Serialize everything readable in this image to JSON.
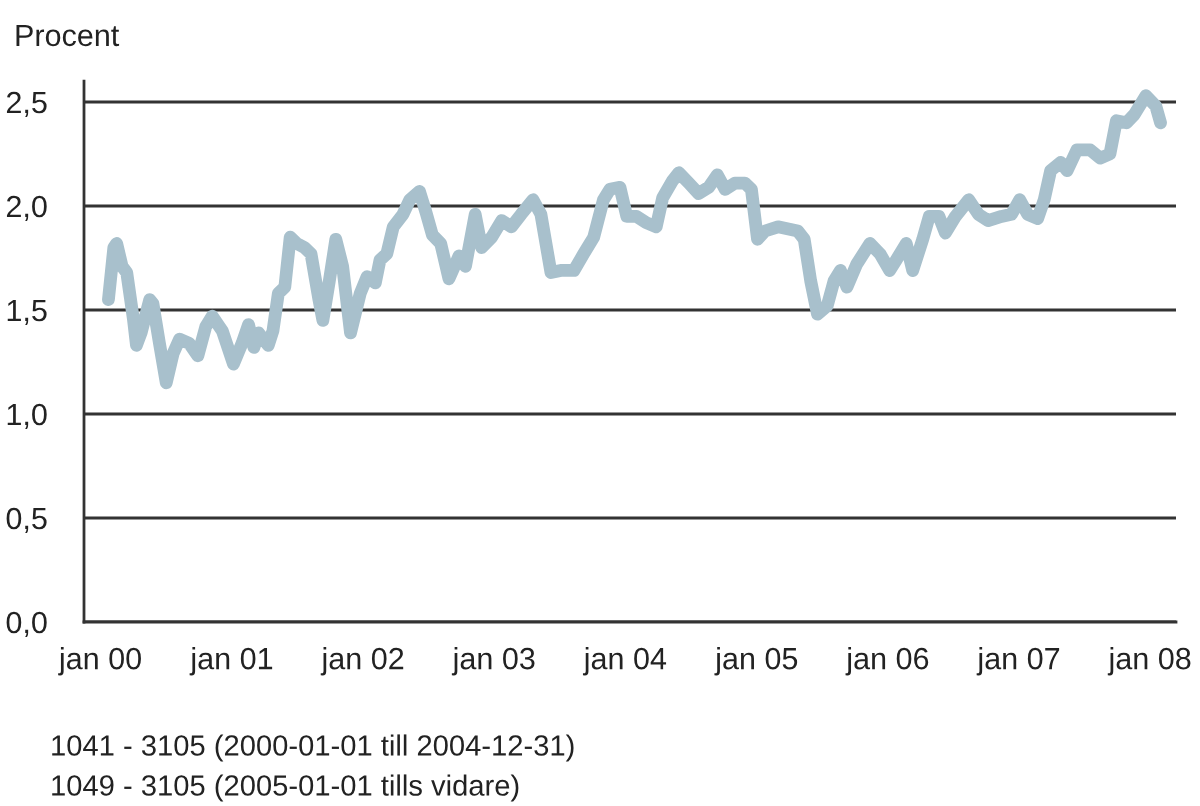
{
  "chart_data": {
    "type": "line",
    "ylabel": "Procent",
    "x": [
      "2000-01-23",
      "2000-02-07",
      "2000-02-15",
      "2000-03-01",
      "2000-03-14",
      "2000-04-02",
      "2000-04-10",
      "2000-04-23",
      "2000-05-17",
      "2000-05-26",
      "2000-06-13",
      "2000-07-02",
      "2000-07-21",
      "2000-08-08",
      "2000-09-04",
      "2000-09-28",
      "2000-10-20",
      "2000-11-07",
      "2000-12-05",
      "2001-01-05",
      "2001-01-29",
      "2001-02-16",
      "2001-03-03",
      "2001-03-16",
      "2001-04-12",
      "2001-04-25",
      "2001-05-10",
      "2001-05-28",
      "2001-06-12",
      "2001-06-30",
      "2001-07-22",
      "2001-08-09",
      "2001-08-31",
      "2001-09-11",
      "2001-09-29",
      "2001-10-17",
      "2001-11-05",
      "2001-11-27",
      "2001-12-24",
      "2002-01-12",
      "2002-02-04",
      "2002-02-17",
      "2002-03-08",
      "2002-03-26",
      "2002-04-22",
      "2002-05-11",
      "2002-06-07",
      "2002-06-25",
      "2002-07-13",
      "2002-08-05",
      "2002-08-28",
      "2002-09-25",
      "2002-10-13",
      "2002-11-09",
      "2002-11-27",
      "2002-12-25",
      "2003-01-22",
      "2003-02-18",
      "2003-03-17",
      "2003-04-19",
      "2003-05-11",
      "2003-06-08",
      "2003-07-05",
      "2003-08-11",
      "2003-09-07",
      "2003-10-05",
      "2003-11-01",
      "2003-11-19",
      "2003-12-17",
      "2004-01-05",
      "2004-02-01",
      "2004-02-28",
      "2004-03-27",
      "2004-04-14",
      "2004-05-11",
      "2004-05-29",
      "2004-06-26",
      "2004-07-23",
      "2004-08-20",
      "2004-09-13",
      "2004-10-05",
      "2004-11-01",
      "2004-11-29",
      "2004-12-17",
      "2005-01-03",
      "2005-01-24",
      "2005-03-01",
      "2005-04-25",
      "2005-05-13",
      "2005-05-31",
      "2005-06-19",
      "2005-07-16",
      "2005-08-04",
      "2005-08-22",
      "2005-09-09",
      "2005-10-06",
      "2005-11-12",
      "2005-12-10",
      "2006-01-06",
      "2006-01-24",
      "2006-02-21",
      "2006-03-11",
      "2006-04-08",
      "2006-04-26",
      "2006-05-23",
      "2006-06-10",
      "2006-07-08",
      "2006-08-14",
      "2006-09-10",
      "2006-10-07",
      "2006-11-13",
      "2006-12-11",
      "2007-01-03",
      "2007-01-25",
      "2007-02-22",
      "2007-03-12",
      "2007-03-30",
      "2007-04-27",
      "2007-05-15",
      "2007-06-11",
      "2007-07-18",
      "2007-08-15",
      "2007-09-11",
      "2007-09-29",
      "2007-10-27",
      "2007-11-18",
      "2007-12-20",
      "2008-01-17",
      "2008-01-30"
    ],
    "series": [
      {
        "color": "#a8c0cc",
        "values": [
          1.55,
          1.8,
          1.82,
          1.71,
          1.68,
          1.45,
          1.33,
          1.39,
          1.55,
          1.53,
          1.34,
          1.15,
          1.29,
          1.36,
          1.34,
          1.28,
          1.42,
          1.47,
          1.4,
          1.24,
          1.34,
          1.43,
          1.32,
          1.39,
          1.33,
          1.4,
          1.58,
          1.61,
          1.85,
          1.82,
          1.8,
          1.77,
          1.55,
          1.45,
          1.64,
          1.84,
          1.71,
          1.39,
          1.58,
          1.66,
          1.63,
          1.74,
          1.77,
          1.9,
          1.96,
          2.03,
          2.07,
          1.97,
          1.86,
          1.82,
          1.65,
          1.76,
          1.71,
          1.96,
          1.8,
          1.85,
          1.93,
          1.9,
          1.96,
          2.03,
          1.96,
          1.68,
          1.69,
          1.69,
          1.77,
          1.85,
          2.03,
          2.08,
          2.09,
          1.95,
          1.95,
          1.92,
          1.9,
          2.04,
          2.12,
          2.16,
          2.11,
          2.06,
          2.09,
          2.15,
          2.08,
          2.11,
          2.11,
          2.08,
          1.84,
          1.88,
          1.9,
          1.88,
          1.84,
          1.64,
          1.48,
          1.52,
          1.64,
          1.69,
          1.61,
          1.72,
          1.82,
          1.77,
          1.69,
          1.74,
          1.82,
          1.69,
          1.84,
          1.95,
          1.95,
          1.87,
          1.95,
          2.03,
          1.96,
          1.93,
          1.95,
          1.96,
          2.03,
          1.96,
          1.94,
          2.03,
          2.17,
          2.21,
          2.17,
          2.27,
          2.27,
          2.23,
          2.25,
          2.41,
          2.4,
          2.44,
          2.53,
          2.48,
          2.4
        ]
      }
    ],
    "xlim": [
      "1999-11-16",
      "2008-03-13"
    ],
    "xticks": [
      {
        "value": "2000-01-01",
        "label": "jan 00"
      },
      {
        "value": "2001-01-01",
        "label": "jan 01"
      },
      {
        "value": "2002-01-01",
        "label": "jan 02"
      },
      {
        "value": "2003-01-01",
        "label": "jan 03"
      },
      {
        "value": "2004-01-01",
        "label": "jan 04"
      },
      {
        "value": "2005-01-01",
        "label": "jan 05"
      },
      {
        "value": "2006-01-01",
        "label": "jan 06"
      },
      {
        "value": "2007-01-01",
        "label": "jan 07"
      },
      {
        "value": "2008-01-01",
        "label": "jan 08"
      }
    ],
    "ylim": [
      0,
      2.6
    ],
    "yticks": [
      {
        "value": 0,
        "label": "0,0"
      },
      {
        "value": 0.5,
        "label": "0,5"
      },
      {
        "value": 1,
        "label": "1,0"
      },
      {
        "value": 1.5,
        "label": "1,5"
      },
      {
        "value": 2,
        "label": "2,0"
      },
      {
        "value": 2.5,
        "label": "2,5"
      }
    ],
    "grid": "y",
    "annotations": [
      "1041 - 3105 (2000-01-01 till 2004-12-31)",
      "1049 - 3105 (2005-01-01 tills vidare)"
    ]
  }
}
